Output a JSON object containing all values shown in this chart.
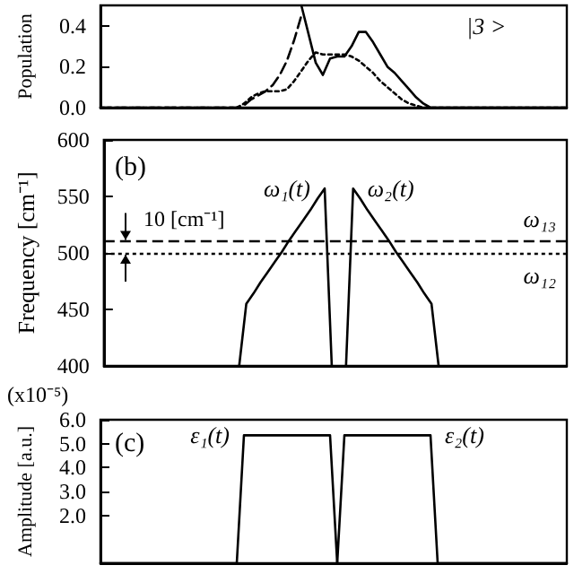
{
  "chart_data": [
    {
      "type": "line",
      "ylabel": "Population",
      "categories": [
        null,
        null,
        null,
        null,
        null,
        null,
        null,
        null,
        null,
        null,
        null,
        null,
        null,
        null,
        null,
        null,
        null,
        null,
        null,
        null,
        null,
        null,
        null,
        null,
        null,
        null,
        null,
        null,
        null,
        null,
        null,
        null,
        null,
        null,
        null,
        null,
        null,
        null,
        null,
        null,
        null,
        null,
        null,
        null,
        null,
        null,
        null,
        null,
        null,
        null,
        null,
        null,
        null,
        null,
        null,
        null,
        null,
        null,
        null,
        null,
        null,
        null,
        null,
        null,
        null,
        null
      ],
      "series": [
        {
          "color": "#000000",
          "line_style": "solid",
          "values": [
            null,
            null,
            null,
            null,
            null,
            null,
            null,
            null,
            null,
            null,
            null,
            null,
            null,
            null,
            null,
            null,
            null,
            null,
            null,
            null,
            null,
            null,
            null,
            null,
            null,
            null,
            null,
            null,
            0.5,
            0.36,
            0.22,
            0.16,
            0.24,
            0.25,
            0.25,
            0.3,
            0.37,
            0.37,
            0.32,
            0.26,
            0.2,
            0.17,
            0.13,
            0.09,
            0.05,
            0.02,
            0,
            0,
            0,
            0,
            0,
            0,
            0,
            0,
            0,
            0,
            0,
            0,
            0,
            0,
            0,
            0,
            0,
            0,
            0,
            0
          ]
        },
        {
          "color": "#000000",
          "line_style": "dashed",
          "values": [
            0,
            0,
            0,
            0,
            0,
            0,
            0,
            0,
            0,
            0,
            0,
            0,
            0,
            0,
            0,
            0,
            0,
            0,
            0,
            0,
            0.01,
            0.04,
            0.06,
            0.08,
            0.11,
            0.16,
            0.23,
            0.33,
            0.45,
            null,
            null,
            null,
            null,
            null,
            null,
            null,
            null,
            null,
            null,
            null,
            null,
            null,
            null,
            null,
            null,
            null,
            null,
            null,
            null,
            null,
            null,
            null,
            null,
            null,
            null,
            null,
            null,
            null,
            null,
            null,
            null,
            null,
            null,
            null,
            null,
            null
          ]
        },
        {
          "name": "|3 >",
          "color": "#000000",
          "line_style": "dotted",
          "values": [
            0,
            0,
            0,
            0,
            0,
            0,
            0,
            0,
            0,
            0,
            0,
            0,
            0,
            0,
            0,
            0,
            0,
            0,
            0,
            0,
            0.02,
            0.05,
            0.07,
            0.08,
            0.08,
            0.08,
            0.09,
            0.13,
            0.18,
            0.23,
            0.27,
            0.26,
            0.26,
            0.26,
            0.26,
            0.25,
            0.23,
            0.2,
            0.17,
            0.13,
            0.1,
            0.07,
            0.04,
            0.02,
            0.01,
            0,
            0,
            0,
            0,
            0,
            0,
            0,
            0,
            0,
            0,
            0,
            0,
            0,
            0,
            0,
            0,
            0,
            0,
            0,
            0,
            0
          ]
        }
      ],
      "ylim": [
        0,
        0.5
      ],
      "yticks": [
        {
          "value": 0,
          "label": "0.0"
        },
        {
          "value": 0.2,
          "label": "0.2"
        },
        {
          "value": 0.4,
          "label": "0.4"
        }
      ],
      "tick_labels": "y",
      "marker": "none"
    },
    {
      "type": "line",
      "ylabel": "Frequency [cm⁻¹]",
      "categories": [
        null,
        null,
        null,
        null,
        null,
        null,
        null,
        null,
        null,
        null,
        null,
        null,
        null,
        null,
        null,
        null,
        null,
        null,
        null,
        null,
        null,
        null,
        null,
        null,
        null,
        null,
        null,
        null,
        null,
        null,
        null,
        null,
        null,
        null,
        null,
        null,
        null,
        null,
        null,
        null,
        null,
        null,
        null,
        null,
        null,
        null,
        null,
        null,
        null,
        null,
        null,
        null,
        null,
        null,
        null,
        null,
        null,
        null,
        null,
        null,
        null,
        null,
        null,
        null,
        null,
        null
      ],
      "series": [
        {
          "name": "ω₁(t)",
          "color": "#000000",
          "line_style": "solid",
          "values": [
            null,
            null,
            null,
            null,
            null,
            null,
            null,
            null,
            null,
            null,
            null,
            null,
            null,
            null,
            null,
            null,
            null,
            null,
            null,
            400,
            455,
            464,
            474,
            483,
            492,
            501,
            511,
            520,
            529,
            538,
            548,
            557,
            400,
            null,
            null,
            null,
            null,
            null,
            null,
            null,
            null,
            null,
            null,
            null,
            null,
            null,
            null,
            null,
            null,
            null,
            null,
            null,
            null,
            null,
            null,
            null,
            null,
            null,
            null,
            null,
            null,
            null,
            null,
            null,
            null,
            null
          ]
        },
        {
          "name": "ω₂(t)",
          "color": "#000000",
          "line_style": "solid",
          "values": [
            null,
            null,
            null,
            null,
            null,
            null,
            null,
            null,
            null,
            null,
            null,
            null,
            null,
            null,
            null,
            null,
            null,
            null,
            null,
            null,
            null,
            null,
            null,
            null,
            null,
            null,
            null,
            null,
            null,
            null,
            null,
            null,
            null,
            null,
            400,
            557,
            548,
            538,
            529,
            520,
            511,
            501,
            492,
            483,
            474,
            464,
            455,
            400,
            null,
            null,
            null,
            null,
            null,
            null,
            null,
            null,
            null,
            null,
            null,
            null,
            null,
            null,
            null,
            null,
            null,
            null
          ]
        }
      ],
      "ref_lines": [
        {
          "axis": "y",
          "value": 510,
          "label": "ω₁₃",
          "line_style": "dashed",
          "color": "#000000"
        },
        {
          "axis": "y",
          "value": 500,
          "label": "ω₁₂",
          "line_style": "dotted",
          "color": "#000000"
        }
      ],
      "annotations": [
        "(b)",
        "10 [cm⁻¹]"
      ],
      "ylim": [
        400,
        600
      ],
      "yticks": [
        400,
        450,
        500,
        550,
        600
      ],
      "tick_labels": "y",
      "marker": "none"
    },
    {
      "type": "line",
      "ylabel": "Amplitude [a.u.]",
      "categories": [
        null,
        null,
        null,
        null,
        null,
        null,
        null,
        null,
        null,
        null,
        null,
        null,
        null,
        null,
        null,
        null,
        null,
        null,
        null,
        null,
        null,
        null,
        null,
        null,
        null,
        null,
        null,
        null,
        null,
        null,
        null,
        null,
        null,
        null,
        null,
        null,
        null,
        null,
        null,
        null,
        null,
        null,
        null,
        null,
        null,
        null,
        null,
        null,
        null,
        null,
        null,
        null,
        null,
        null,
        null,
        null,
        null,
        null,
        null,
        null,
        null,
        null,
        null,
        null,
        null,
        null
      ],
      "series": [
        {
          "name": "ε₁(t)",
          "color": "#000000",
          "line_style": "solid",
          "values": [
            0,
            0,
            0,
            0,
            0,
            0,
            0,
            0,
            0,
            0,
            0,
            0,
            0,
            0,
            0,
            0,
            0,
            0,
            0,
            0,
            5.35,
            5.35,
            5.35,
            5.35,
            5.35,
            5.35,
            5.35,
            5.35,
            5.35,
            5.35,
            5.35,
            5.35,
            5.35,
            0,
            null,
            null,
            null,
            null,
            null,
            null,
            null,
            null,
            null,
            null,
            null,
            null,
            null,
            null,
            null,
            null,
            null,
            null,
            null,
            null,
            null,
            null,
            null,
            null,
            null,
            null,
            null,
            null,
            null,
            null,
            null,
            null
          ]
        },
        {
          "name": "ε₂(t)",
          "color": "#000000",
          "line_style": "solid",
          "values": [
            null,
            null,
            null,
            null,
            null,
            null,
            null,
            null,
            null,
            null,
            null,
            null,
            null,
            null,
            null,
            null,
            null,
            null,
            null,
            null,
            null,
            null,
            null,
            null,
            null,
            null,
            null,
            null,
            null,
            null,
            null,
            null,
            null,
            0,
            5.35,
            5.35,
            5.35,
            5.35,
            5.35,
            5.35,
            5.35,
            5.35,
            5.35,
            5.35,
            5.35,
            5.35,
            5.35,
            0,
            0,
            0,
            0,
            0,
            0,
            0,
            0,
            0,
            0,
            0,
            0,
            0,
            0,
            0,
            0,
            0,
            0,
            0
          ]
        }
      ],
      "annotations": [
        "(c)",
        "(x10⁻⁵)"
      ],
      "ylim": [
        0,
        6
      ],
      "yticks": [
        {
          "value": 2,
          "label": "2.0"
        },
        {
          "value": 3,
          "label": "3.0"
        },
        {
          "value": 4,
          "label": "4.0"
        },
        {
          "value": 5,
          "label": "5.0"
        },
        {
          "value": 6,
          "label": "6.0"
        }
      ],
      "tick_labels": "y",
      "marker": "none"
    }
  ]
}
